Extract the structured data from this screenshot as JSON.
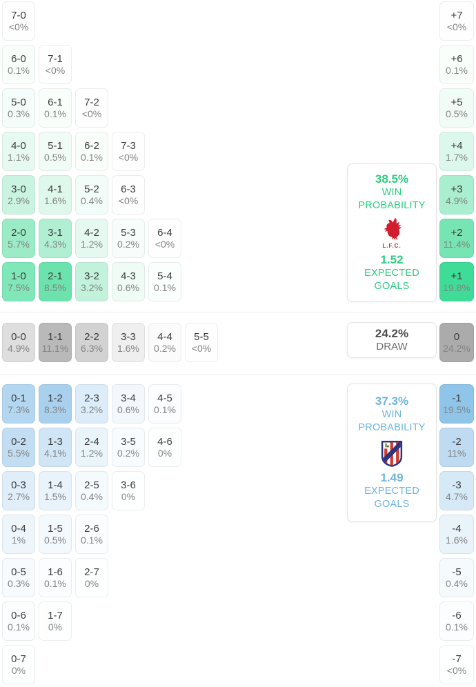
{
  "chart_data": {
    "type": "heatmap",
    "description": "Correct-score probability matrix with goal-difference column and outcome summary boxes",
    "home_summary": {
      "win_probability": "38.5%",
      "win_label": "WIN PROBABILITY",
      "expected_goals": "1.52",
      "expected_goals_label": "EXPECTED GOALS",
      "crest": "liverpool-crest",
      "crest_caption": "L.F.C.",
      "accent_color": "#2bcd80"
    },
    "draw_summary": {
      "probability": "24.2%",
      "label": "DRAW"
    },
    "away_summary": {
      "win_probability": "37.3%",
      "win_label": "WIN PROBABILITY",
      "expected_goals": "1.49",
      "expected_goals_label": "EXPECTED GOALS",
      "crest": "atletico-madrid-crest",
      "accent_color": "#6cb4e0"
    },
    "home_win_scores": [
      [
        "7-0",
        "<0%"
      ],
      [
        "6-0",
        "0.1%"
      ],
      [
        "7-1",
        "<0%"
      ],
      [
        "5-0",
        "0.3%"
      ],
      [
        "6-1",
        "0.1%"
      ],
      [
        "7-2",
        "<0%"
      ],
      [
        "4-0",
        "1.1%"
      ],
      [
        "5-1",
        "0.5%"
      ],
      [
        "6-2",
        "0.1%"
      ],
      [
        "7-3",
        "<0%"
      ],
      [
        "3-0",
        "2.9%"
      ],
      [
        "4-1",
        "1.6%"
      ],
      [
        "5-2",
        "0.4%"
      ],
      [
        "6-3",
        "<0%"
      ],
      [
        "2-0",
        "5.7%"
      ],
      [
        "3-1",
        "4.3%"
      ],
      [
        "4-2",
        "1.2%"
      ],
      [
        "5-3",
        "0.2%"
      ],
      [
        "6-4",
        "<0%"
      ],
      [
        "1-0",
        "7.5%"
      ],
      [
        "2-1",
        "8.5%"
      ],
      [
        "3-2",
        "3.2%"
      ],
      [
        "4-3",
        "0.6%"
      ],
      [
        "5-4",
        "0.1%"
      ]
    ],
    "draw_scores": [
      [
        "0-0",
        "4.9%"
      ],
      [
        "1-1",
        "11.1%"
      ],
      [
        "2-2",
        "6.3%"
      ],
      [
        "3-3",
        "1.6%"
      ],
      [
        "4-4",
        "0.2%"
      ],
      [
        "5-5",
        "<0%"
      ]
    ],
    "away_win_scores": [
      [
        "0-1",
        "7.3%"
      ],
      [
        "1-2",
        "8.3%"
      ],
      [
        "2-3",
        "3.2%"
      ],
      [
        "3-4",
        "0.6%"
      ],
      [
        "4-5",
        "0.1%"
      ],
      [
        "0-2",
        "5.5%"
      ],
      [
        "1-3",
        "4.1%"
      ],
      [
        "2-4",
        "1.2%"
      ],
      [
        "3-5",
        "0.2%"
      ],
      [
        "4-6",
        "0%"
      ],
      [
        "0-3",
        "2.7%"
      ],
      [
        "1-4",
        "1.5%"
      ],
      [
        "2-5",
        "0.4%"
      ],
      [
        "3-6",
        "0%"
      ],
      [
        "0-4",
        "1%"
      ],
      [
        "1-5",
        "0.5%"
      ],
      [
        "2-6",
        "0.1%"
      ],
      [
        "0-5",
        "0.3%"
      ],
      [
        "1-6",
        "0.1%"
      ],
      [
        "2-7",
        "0%"
      ],
      [
        "0-6",
        "0.1%"
      ],
      [
        "1-7",
        "0%"
      ],
      [
        "0-7",
        "0%"
      ]
    ],
    "goal_difference": [
      [
        "+7",
        "<0%"
      ],
      [
        "+6",
        "0.1%"
      ],
      [
        "+5",
        "0.5%"
      ],
      [
        "+4",
        "1.7%"
      ],
      [
        "+3",
        "4.9%"
      ],
      [
        "+2",
        "11.4%"
      ],
      [
        "+1",
        "19.8%"
      ],
      [
        "0",
        "24.2%"
      ],
      [
        "-1",
        "19.5%"
      ],
      [
        "-2",
        "11%"
      ],
      [
        "-3",
        "4.7%"
      ],
      [
        "-4",
        "1.6%"
      ],
      [
        "-5",
        "0.4%"
      ],
      [
        "-6",
        "0.1%"
      ],
      [
        "-7",
        "<0%"
      ]
    ]
  },
  "grid": {
    "home_rows": [
      {
        "cells": [
          {
            "s": "7-0",
            "p": "<0%",
            "bg": "#fdfefd"
          }
        ],
        "diff": {
          "s": "+7",
          "p": "<0%",
          "bg": "#fdfefd"
        }
      },
      {
        "cells": [
          {
            "s": "6-0",
            "p": "0.1%",
            "bg": "#f9fefb"
          },
          {
            "s": "7-1",
            "p": "<0%",
            "bg": "#fefefe"
          }
        ],
        "diff": {
          "s": "+6",
          "p": "0.1%",
          "bg": "#f9fefb"
        }
      },
      {
        "cells": [
          {
            "s": "5-0",
            "p": "0.3%",
            "bg": "#f4fdf9"
          },
          {
            "s": "6-1",
            "p": "0.1%",
            "bg": "#f9fefb"
          },
          {
            "s": "7-2",
            "p": "<0%",
            "bg": "#fefefe"
          }
        ],
        "diff": {
          "s": "+5",
          "p": "0.5%",
          "bg": "#f1fcf7"
        }
      },
      {
        "cells": [
          {
            "s": "4-0",
            "p": "1.1%",
            "bg": "#e7faf1"
          },
          {
            "s": "5-1",
            "p": "0.5%",
            "bg": "#f1fcf7"
          },
          {
            "s": "6-2",
            "p": "0.1%",
            "bg": "#f9fefb"
          },
          {
            "s": "7-3",
            "p": "<0%",
            "bg": "#fefefe"
          }
        ],
        "diff": {
          "s": "+4",
          "p": "1.7%",
          "bg": "#dcf8ec"
        }
      },
      {
        "cells": [
          {
            "s": "3-0",
            "p": "2.9%",
            "bg": "#caf4e1"
          },
          {
            "s": "4-1",
            "p": "1.6%",
            "bg": "#def8ec"
          },
          {
            "s": "5-2",
            "p": "0.4%",
            "bg": "#f2fcf8"
          },
          {
            "s": "6-3",
            "p": "<0%",
            "bg": "#fdfefd"
          }
        ],
        "diff": {
          "s": "+3",
          "p": "4.9%",
          "bg": "#a9eecf"
        }
      },
      {
        "cells": [
          {
            "s": "2-0",
            "p": "5.7%",
            "bg": "#9cebc7"
          },
          {
            "s": "3-1",
            "p": "4.3%",
            "bg": "#b1efd3"
          },
          {
            "s": "4-2",
            "p": "1.2%",
            "bg": "#e5f9f0"
          },
          {
            "s": "5-3",
            "p": "0.2%",
            "bg": "#f7fdfa"
          },
          {
            "s": "6-4",
            "p": "<0%",
            "bg": "#fefefe"
          }
        ],
        "diff": {
          "s": "+2",
          "p": "11.4%",
          "bg": "#76e5b3"
        }
      },
      {
        "cells": [
          {
            "s": "1-0",
            "p": "7.5%",
            "bg": "#80e7b9"
          },
          {
            "s": "2-1",
            "p": "8.5%",
            "bg": "#6ce2ad"
          },
          {
            "s": "3-2",
            "p": "3.2%",
            "bg": "#c3f2dc"
          },
          {
            "s": "4-3",
            "p": "0.6%",
            "bg": "#effbf5"
          },
          {
            "s": "5-4",
            "p": "0.1%",
            "bg": "#fafefc"
          }
        ],
        "diff": {
          "s": "+1",
          "p": "19.8%",
          "bg": "#3edc97"
        }
      }
    ],
    "draw_row": {
      "cells": [
        {
          "s": "0-0",
          "p": "4.9%",
          "bg": "#dedede"
        },
        {
          "s": "1-1",
          "p": "11.1%",
          "bg": "#b9b9b9"
        },
        {
          "s": "2-2",
          "p": "6.3%",
          "bg": "#d2d2d2"
        },
        {
          "s": "3-3",
          "p": "1.6%",
          "bg": "#efefef"
        },
        {
          "s": "4-4",
          "p": "0.2%",
          "bg": "#fbfbfb"
        },
        {
          "s": "5-5",
          "p": "<0%",
          "bg": "#fefefe"
        }
      ],
      "diff": {
        "s": "0",
        "p": "24.2%",
        "bg": "#ababab"
      }
    },
    "away_rows": [
      {
        "cells": [
          {
            "s": "0-1",
            "p": "7.3%",
            "bg": "#b3d7f0"
          },
          {
            "s": "1-2",
            "p": "8.3%",
            "bg": "#a9d1ee"
          },
          {
            "s": "2-3",
            "p": "3.2%",
            "bg": "#dcecf8"
          },
          {
            "s": "3-4",
            "p": "0.6%",
            "bg": "#f3f8fd"
          },
          {
            "s": "4-5",
            "p": "0.1%",
            "bg": "#fbfdfe"
          }
        ],
        "diff": {
          "s": "-1",
          "p": "19.5%",
          "bg": "#8ec5e9"
        }
      },
      {
        "cells": [
          {
            "s": "0-2",
            "p": "5.5%",
            "bg": "#c3def3"
          },
          {
            "s": "1-3",
            "p": "4.1%",
            "bg": "#d0e5f5"
          },
          {
            "s": "2-4",
            "p": "1.2%",
            "bg": "#eaf4fb"
          },
          {
            "s": "3-5",
            "p": "0.2%",
            "bg": "#f9fcfe"
          },
          {
            "s": "4-6",
            "p": "0%",
            "bg": "#feffff"
          }
        ],
        "diff": {
          "s": "-2",
          "p": "11%",
          "bg": "#bedbf2"
        }
      },
      {
        "cells": [
          {
            "s": "0-3",
            "p": "2.7%",
            "bg": "#dfeef9"
          },
          {
            "s": "1-4",
            "p": "1.5%",
            "bg": "#e9f3fb"
          },
          {
            "s": "2-5",
            "p": "0.4%",
            "bg": "#f5fafd"
          },
          {
            "s": "3-6",
            "p": "0%",
            "bg": "#feffff"
          }
        ],
        "diff": {
          "s": "-3",
          "p": "4.7%",
          "bg": "#d6e9f6"
        }
      },
      {
        "cells": [
          {
            "s": "0-4",
            "p": "1%",
            "bg": "#eef6fc"
          },
          {
            "s": "1-5",
            "p": "0.5%",
            "bg": "#f4f9fd"
          },
          {
            "s": "2-6",
            "p": "0.1%",
            "bg": "#fbfdfe"
          }
        ],
        "diff": {
          "s": "-4",
          "p": "1.6%",
          "bg": "#e8f3fa"
        }
      },
      {
        "cells": [
          {
            "s": "0-5",
            "p": "0.3%",
            "bg": "#f7fbfe"
          },
          {
            "s": "1-6",
            "p": "0.1%",
            "bg": "#fbfdfe"
          },
          {
            "s": "2-7",
            "p": "0%",
            "bg": "#feffff"
          }
        ],
        "diff": {
          "s": "-5",
          "p": "0.4%",
          "bg": "#f5fafd"
        }
      },
      {
        "cells": [
          {
            "s": "0-6",
            "p": "0.1%",
            "bg": "#fbfdfe"
          },
          {
            "s": "1-7",
            "p": "0%",
            "bg": "#feffff"
          }
        ],
        "diff": {
          "s": "-6",
          "p": "0.1%",
          "bg": "#fbfdfe"
        }
      },
      {
        "cells": [
          {
            "s": "0-7",
            "p": "0%",
            "bg": "#feffff"
          }
        ],
        "diff": {
          "s": "-7",
          "p": "<0%",
          "bg": "#feffff"
        }
      }
    ]
  },
  "summary": {
    "home": {
      "win_pct": "38.5%",
      "win_label": "WIN PROBABILITY",
      "crest_caption": "L.F.C.",
      "xg": "1.52",
      "xg_label": "EXPECTED GOALS",
      "accent": "#2bcd80",
      "crest_red": "#d01e2f"
    },
    "draw": {
      "pct": "24.2%",
      "label": "DRAW"
    },
    "away": {
      "win_pct": "37.3%",
      "win_label": "WIN PROBABILITY",
      "xg": "1.49",
      "xg_label": "EXPECTED GOALS",
      "accent": "#6cb4e0",
      "crest_navy": "#2a3480",
      "crest_red": "#d6362c"
    }
  }
}
